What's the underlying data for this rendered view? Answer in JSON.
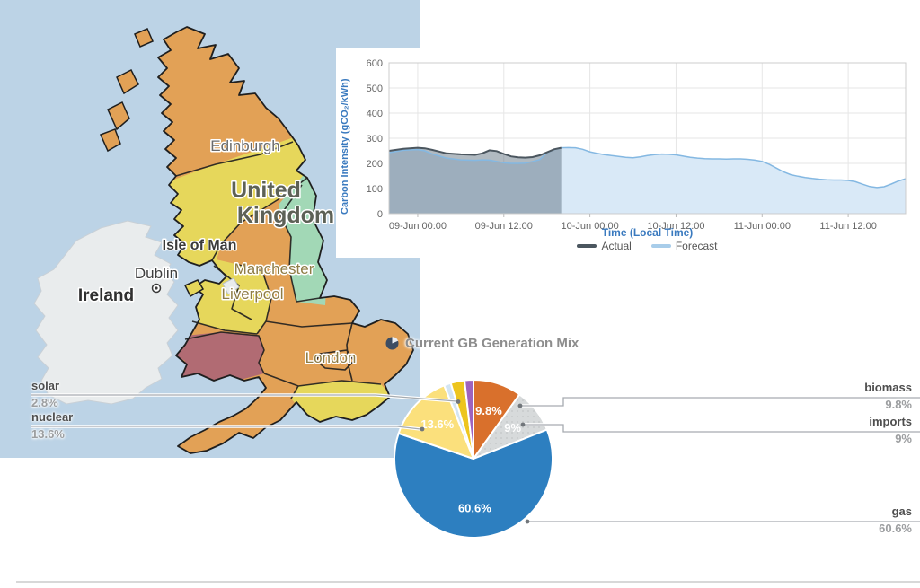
{
  "map": {
    "labels": {
      "edinburgh": "Edinburgh",
      "uk_line1": "United",
      "uk_line2": "Kingdom",
      "isle_of_man": "Isle of Man",
      "manchester": "Manchester",
      "liverpool": "Liverpool",
      "london": "London",
      "dublin": "Dublin",
      "ireland": "Ireland"
    },
    "colors": {
      "sea": "#bcd3e6",
      "region_orange": "#e2a156",
      "region_yellow": "#e6d75b",
      "region_green": "#a2d8b6",
      "region_maroon": "#b16b73",
      "ireland_land": "#e9eced"
    }
  },
  "intensity_chart": {
    "y_title": "Carbon Intensity (gCO₂/kWh)",
    "x_title": "Time (Local Time)",
    "legend_actual": "Actual",
    "legend_forecast": "Forecast"
  },
  "generation_mix": {
    "title": "Current GB Generation Mix",
    "left_callouts": [
      {
        "name": "solar",
        "pct": "2.8%"
      },
      {
        "name": "nuclear",
        "pct": "13.6%"
      }
    ],
    "right_callouts": [
      {
        "name": "biomass",
        "pct": "9.8%"
      },
      {
        "name": "imports",
        "pct": "9%"
      },
      {
        "name": "gas",
        "pct": "60.6%"
      }
    ]
  },
  "chart_data": [
    {
      "type": "area",
      "title": "Carbon Intensity actual vs forecast",
      "xlabel": "Time (Local Time)",
      "ylabel": "Carbon Intensity (gCO₂/kWh)",
      "ylim": [
        0,
        600
      ],
      "y_step": 100,
      "grid": true,
      "legend_position": "bottom",
      "x_unit_hours_from": "08-Jun 20:00",
      "x_range": [
        0,
        72
      ],
      "now_boundary_t": 24,
      "x_ticks": [
        {
          "t": 4,
          "label": "09-Jun 00:00"
        },
        {
          "t": 16,
          "label": "09-Jun 12:00"
        },
        {
          "t": 28,
          "label": "10-Jun 00:00"
        },
        {
          "t": 40,
          "label": "10-Jun 12:00"
        },
        {
          "t": 52,
          "label": "11-Jun 00:00"
        },
        {
          "t": 64,
          "label": "11-Jun 12:00"
        }
      ],
      "series": [
        {
          "name": "Actual",
          "line_color": "#4b565f",
          "fill_color": "rgba(93,110,125,0.48)",
          "points": [
            [
              0,
              250
            ],
            [
              2,
              258
            ],
            [
              4,
              262
            ],
            [
              5,
              260
            ],
            [
              6,
              254
            ],
            [
              8,
              240
            ],
            [
              10,
              236
            ],
            [
              12,
              234
            ],
            [
              13,
              240
            ],
            [
              14,
              252
            ],
            [
              15,
              249
            ],
            [
              16,
              238
            ],
            [
              17,
              228
            ],
            [
              18,
              224
            ],
            [
              19,
              223
            ],
            [
              20,
              225
            ],
            [
              21,
              232
            ],
            [
              22,
              244
            ],
            [
              23,
              256
            ],
            [
              24,
              262
            ]
          ]
        },
        {
          "name": "Forecast",
          "line_color": "#84b8e2",
          "fill_color": "#d9e9f7",
          "points": [
            [
              0,
              243
            ],
            [
              2,
              252
            ],
            [
              4,
              255
            ],
            [
              5,
              250
            ],
            [
              6,
              238
            ],
            [
              8,
              221
            ],
            [
              10,
              214
            ],
            [
              12,
              212
            ],
            [
              13,
              214
            ],
            [
              14,
              213
            ],
            [
              15,
              208
            ],
            [
              16,
              202
            ],
            [
              17,
              200
            ],
            [
              18,
              200
            ],
            [
              19,
              201
            ],
            [
              20,
              207
            ],
            [
              21,
              215
            ],
            [
              22,
              242
            ],
            [
              23,
              255
            ],
            [
              24,
              262
            ],
            [
              25,
              263
            ],
            [
              26,
              262
            ],
            [
              27,
              256
            ],
            [
              28,
              246
            ],
            [
              29,
              240
            ],
            [
              30,
              235
            ],
            [
              31,
              231
            ],
            [
              32,
              228
            ],
            [
              33,
              224
            ],
            [
              34,
              222
            ],
            [
              35,
              226
            ],
            [
              36,
              231
            ],
            [
              37,
              235
            ],
            [
              38,
              237
            ],
            [
              39,
              236
            ],
            [
              40,
              234
            ],
            [
              41,
              229
            ],
            [
              42,
              224
            ],
            [
              43,
              221
            ],
            [
              44,
              219
            ],
            [
              45,
              218
            ],
            [
              46,
              218
            ],
            [
              47,
              217
            ],
            [
              48,
              218
            ],
            [
              49,
              218
            ],
            [
              50,
              216
            ],
            [
              51,
              213
            ],
            [
              52,
              208
            ],
            [
              53,
              196
            ],
            [
              54,
              181
            ],
            [
              55,
              166
            ],
            [
              56,
              155
            ],
            [
              57,
              149
            ],
            [
              58,
              144
            ],
            [
              59,
              140
            ],
            [
              60,
              137
            ],
            [
              61,
              135
            ],
            [
              62,
              134
            ],
            [
              63,
              134
            ],
            [
              64,
              132
            ],
            [
              65,
              127
            ],
            [
              66,
              117
            ],
            [
              67,
              108
            ],
            [
              68,
              104
            ],
            [
              69,
              107
            ],
            [
              70,
              118
            ],
            [
              71,
              130
            ],
            [
              72,
              139
            ]
          ]
        }
      ]
    },
    {
      "type": "pie",
      "title": "Current GB Generation Mix",
      "slices": [
        {
          "label": "biomass",
          "value": 9.8,
          "color": "#d9702c",
          "inside_label": "9.8%"
        },
        {
          "label": "imports",
          "value": 9.0,
          "color": "#d7dadb",
          "inside_label": "9%",
          "pattern": "dots"
        },
        {
          "label": "gas",
          "value": 60.6,
          "color": "#2d7fc0",
          "inside_label": "60.6%"
        },
        {
          "label": "nuclear",
          "value": 13.6,
          "color": "#fbe07c",
          "inside_label": "13.6%"
        },
        {
          "label": "",
          "value": 1.4,
          "color": "#d3e5f3"
        },
        {
          "label": "solar",
          "value": 2.8,
          "color": "#edc51e"
        },
        {
          "label": "",
          "value": 1.8,
          "color": "#9e63be"
        }
      ]
    }
  ]
}
